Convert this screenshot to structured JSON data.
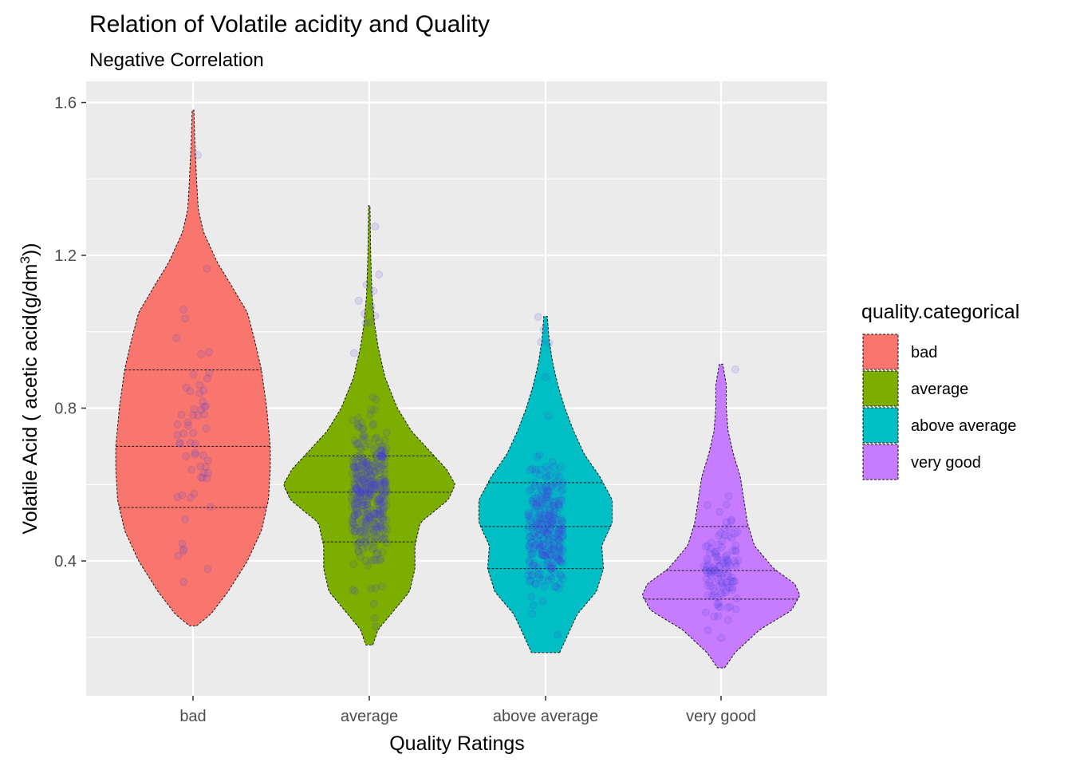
{
  "chart_data": {
    "type": "violin",
    "title": "Relation of Volatile acidity and Quality",
    "subtitle": "Negative Correlation",
    "xlabel": "Quality Ratings",
    "ylabel_parts": {
      "pre": "Volatile Acid ( acetic acid(g",
      "slash": "/",
      "mid": "dm",
      "sup": "3",
      "post": "))"
    },
    "ylim": [
      0.05,
      1.62
    ],
    "yticks": [
      0.4,
      0.8,
      1.2,
      1.6
    ],
    "ytick_labels": [
      "0.4",
      "0.8",
      "1.2",
      "1.6"
    ],
    "yminor": [
      0.2,
      0.6,
      1.0,
      1.4
    ],
    "grid": true,
    "legend": {
      "title": "quality.categorical",
      "placement": "right"
    },
    "categories": [
      "bad",
      "average",
      "above average",
      "very good"
    ],
    "colors": [
      "#F8766D",
      "#7CAE00",
      "#00BFC4",
      "#C77CFF"
    ],
    "point_color": "#4a3fe0",
    "series": [
      {
        "name": "bad",
        "min": 0.23,
        "max": 1.58,
        "quartiles": [
          0.54,
          0.7,
          0.9
        ],
        "density": [
          [
            0.23,
            0.02
          ],
          [
            0.26,
            0.1
          ],
          [
            0.32,
            0.2
          ],
          [
            0.4,
            0.31
          ],
          [
            0.48,
            0.39
          ],
          [
            0.56,
            0.43
          ],
          [
            0.64,
            0.44
          ],
          [
            0.7,
            0.44
          ],
          [
            0.8,
            0.42
          ],
          [
            0.9,
            0.39
          ],
          [
            0.98,
            0.35
          ],
          [
            1.05,
            0.31
          ],
          [
            1.12,
            0.22
          ],
          [
            1.18,
            0.14
          ],
          [
            1.26,
            0.06
          ],
          [
            1.32,
            0.03
          ],
          [
            1.4,
            0.02
          ],
          [
            1.5,
            0.01
          ],
          [
            1.58,
            0.005
          ]
        ]
      },
      {
        "name": "average",
        "min": 0.18,
        "max": 1.33,
        "quartiles": [
          0.45,
          0.58,
          0.675
        ],
        "density": [
          [
            0.18,
            0.02
          ],
          [
            0.22,
            0.05
          ],
          [
            0.27,
            0.14
          ],
          [
            0.32,
            0.23
          ],
          [
            0.38,
            0.26
          ],
          [
            0.44,
            0.26
          ],
          [
            0.5,
            0.29
          ],
          [
            0.56,
            0.45
          ],
          [
            0.6,
            0.49
          ],
          [
            0.64,
            0.44
          ],
          [
            0.68,
            0.36
          ],
          [
            0.74,
            0.24
          ],
          [
            0.8,
            0.16
          ],
          [
            0.88,
            0.09
          ],
          [
            0.96,
            0.05
          ],
          [
            1.02,
            0.03
          ],
          [
            1.1,
            0.015
          ],
          [
            1.2,
            0.008
          ],
          [
            1.33,
            0.004
          ]
        ]
      },
      {
        "name": "above average",
        "min": 0.16,
        "max": 1.04,
        "quartiles": [
          0.38,
          0.49,
          0.605
        ],
        "density": [
          [
            0.16,
            0.08
          ],
          [
            0.2,
            0.12
          ],
          [
            0.26,
            0.18
          ],
          [
            0.32,
            0.29
          ],
          [
            0.38,
            0.33
          ],
          [
            0.44,
            0.32
          ],
          [
            0.5,
            0.38
          ],
          [
            0.56,
            0.38
          ],
          [
            0.62,
            0.31
          ],
          [
            0.68,
            0.22
          ],
          [
            0.74,
            0.16
          ],
          [
            0.8,
            0.11
          ],
          [
            0.86,
            0.07
          ],
          [
            0.92,
            0.04
          ],
          [
            0.98,
            0.02
          ],
          [
            1.04,
            0.01
          ]
        ]
      },
      {
        "name": "very good",
        "min": 0.12,
        "max": 0.915,
        "quartiles": [
          0.3,
          0.375,
          0.49
        ],
        "density": [
          [
            0.12,
            0.02
          ],
          [
            0.16,
            0.08
          ],
          [
            0.22,
            0.22
          ],
          [
            0.27,
            0.4
          ],
          [
            0.31,
            0.45
          ],
          [
            0.34,
            0.42
          ],
          [
            0.38,
            0.3
          ],
          [
            0.44,
            0.19
          ],
          [
            0.5,
            0.15
          ],
          [
            0.56,
            0.13
          ],
          [
            0.62,
            0.11
          ],
          [
            0.68,
            0.07
          ],
          [
            0.74,
            0.04
          ],
          [
            0.8,
            0.03
          ],
          [
            0.86,
            0.03
          ],
          [
            0.915,
            0.01
          ]
        ]
      }
    ]
  }
}
